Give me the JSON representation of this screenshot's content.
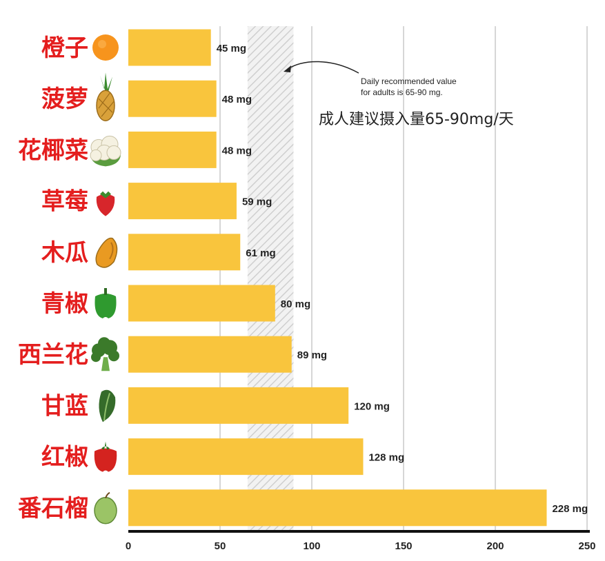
{
  "colors": {
    "bar": "#f9c53d",
    "grid": "#c8c8c8",
    "axis": "#111111",
    "label": "#e41e1e",
    "band_hatch": "#cfcfcf"
  },
  "chart_data": {
    "type": "bar",
    "orientation": "horizontal",
    "categories": [
      "橙子",
      "菠萝",
      "花椰菜",
      "草莓",
      "木瓜",
      "青椒",
      "西兰花",
      "甘蓝",
      "红椒",
      "番石榴"
    ],
    "values": [
      45,
      48,
      48,
      59,
      61,
      80,
      89,
      120,
      128,
      228
    ],
    "value_labels": [
      "45 mg",
      "48 mg",
      "48 mg",
      "59 mg",
      "61 mg",
      "80 mg",
      "89 mg",
      "120 mg",
      "128 mg",
      "228 mg"
    ],
    "icons": [
      "orange-icon",
      "pineapple-icon",
      "cauliflower-icon",
      "strawberry-icon",
      "papaya-icon",
      "green-pepper-icon",
      "broccoli-icon",
      "kale-icon",
      "red-pepper-icon",
      "guava-icon"
    ],
    "xlim": [
      0,
      250
    ],
    "xticks": [
      0,
      50,
      100,
      150,
      200,
      250
    ],
    "grid": true,
    "recommended_band": [
      65,
      90
    ],
    "annotation_en_1": "Daily recommended value",
    "annotation_en_2": "for adults is 65-90 mg.",
    "annotation_zh": "成人建议摄入量65-90mg/天"
  }
}
